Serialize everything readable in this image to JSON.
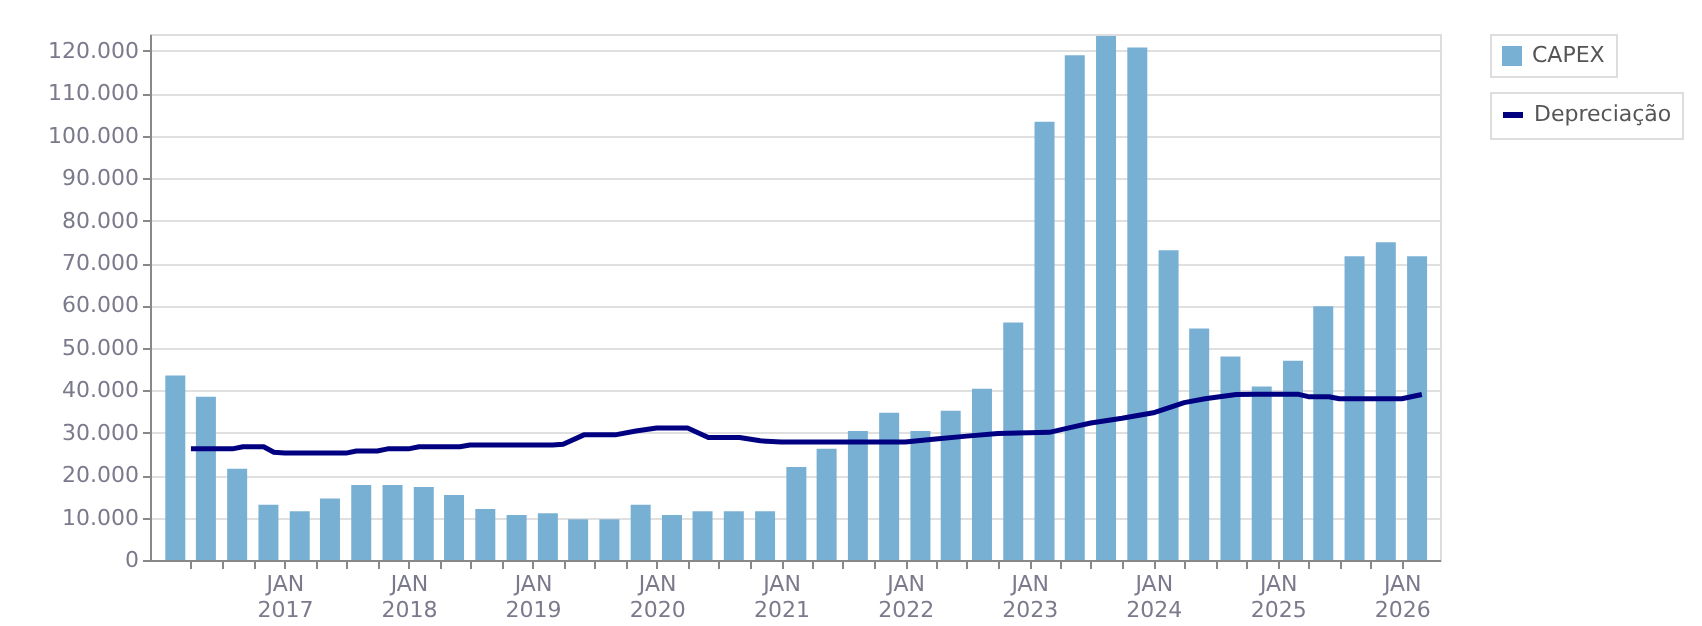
{
  "chart_data": {
    "type": "bar",
    "x": [
      "2016-02-15",
      "2016-05-15",
      "2016-08-15",
      "2016-11-15",
      "2017-02-15",
      "2017-05-15",
      "2017-08-15",
      "2017-11-15",
      "2018-02-15",
      "2018-05-15",
      "2018-08-15",
      "2018-11-15",
      "2019-02-15",
      "2019-05-15",
      "2019-08-15",
      "2019-11-15",
      "2020-02-15",
      "2020-05-15",
      "2020-08-15",
      "2020-11-15",
      "2021-02-15",
      "2021-05-15",
      "2021-08-15",
      "2021-11-15",
      "2022-02-15",
      "2022-05-15",
      "2022-08-15",
      "2022-11-15",
      "2023-02-15",
      "2023-05-15",
      "2023-08-15",
      "2023-11-15",
      "2024-02-15",
      "2024-05-15",
      "2024-08-15",
      "2024-11-15",
      "2025-02-15",
      "2025-05-15",
      "2025-08-15",
      "2025-11-15",
      "2026-02-15"
    ],
    "series": [
      {
        "name": "CAPEX",
        "color": "#78b0d4",
        "values": [
          43500,
          38500,
          21500,
          13000,
          11500,
          14500,
          17700,
          17700,
          17200,
          15300,
          12000,
          10600,
          11000,
          9600,
          9600,
          13000,
          10600,
          11500,
          11500,
          11500,
          21900,
          26200,
          30400,
          34700,
          30400,
          35200,
          40400,
          56000,
          103300,
          119000,
          123500,
          120800,
          73000,
          54600,
          48000,
          40900,
          47000,
          59800,
          71600,
          74900,
          71600
        ]
      },
      {
        "name": "Depreciação",
        "type": "line",
        "color": "#000080",
        "x": [
          "2016-04",
          "2016-08",
          "2016-09",
          "2016-11",
          "2016-12",
          "2017-01",
          "2017-07",
          "2017-08",
          "2017-10",
          "2017-11",
          "2018-01",
          "2018-02",
          "2018-06",
          "2018-07",
          "2019-03",
          "2019-04",
          "2019-06",
          "2019-09",
          "2019-11",
          "2020-01",
          "2020-04",
          "2020-06",
          "2020-09",
          "2020-11",
          "2021-01",
          "2022-01",
          "2022-04",
          "2022-07",
          "2022-10",
          "2023-01",
          "2023-03",
          "2023-05",
          "2023-07",
          "2023-10",
          "2024-01",
          "2024-04",
          "2024-06",
          "2024-09",
          "2024-11",
          "2025-03",
          "2025-04",
          "2025-06",
          "2025-07",
          "2026-01",
          "2026-03"
        ],
        "values": [
          26200,
          26200,
          26700,
          26700,
          25400,
          25200,
          25200,
          25700,
          25700,
          26200,
          26200,
          26700,
          26700,
          27100,
          27100,
          27300,
          29500,
          29500,
          30400,
          31100,
          31100,
          28900,
          28900,
          28100,
          27800,
          27800,
          28500,
          29200,
          29800,
          30000,
          30100,
          31200,
          32300,
          33400,
          34700,
          37100,
          38000,
          39000,
          39100,
          39100,
          38500,
          38500,
          38000,
          38000,
          39000
        ]
      }
    ],
    "xlim": [
      "2016-01-01",
      "2026-03-25"
    ],
    "xticks": [
      {
        "value": "2016-04-01",
        "label": null
      },
      {
        "value": "2016-07-01",
        "label": null
      },
      {
        "value": "2016-10-01",
        "label": null
      },
      {
        "value": "2017-01-01",
        "label": "JAN\n2017"
      },
      {
        "value": "2017-04-01",
        "label": null
      },
      {
        "value": "2017-07-01",
        "label": null
      },
      {
        "value": "2017-10-01",
        "label": null
      },
      {
        "value": "2018-01-01",
        "label": "JAN\n2018"
      },
      {
        "value": "2018-04-01",
        "label": null
      },
      {
        "value": "2018-07-01",
        "label": null
      },
      {
        "value": "2018-10-01",
        "label": null
      },
      {
        "value": "2019-01-01",
        "label": "JAN\n2019"
      },
      {
        "value": "2019-04-01",
        "label": null
      },
      {
        "value": "2019-07-01",
        "label": null
      },
      {
        "value": "2019-10-01",
        "label": null
      },
      {
        "value": "2020-01-01",
        "label": "JAN\n2020"
      },
      {
        "value": "2020-04-01",
        "label": null
      },
      {
        "value": "2020-07-01",
        "label": null
      },
      {
        "value": "2020-10-01",
        "label": null
      },
      {
        "value": "2021-01-01",
        "label": "JAN\n2021"
      },
      {
        "value": "2021-04-01",
        "label": null
      },
      {
        "value": "2021-07-01",
        "label": null
      },
      {
        "value": "2021-10-01",
        "label": null
      },
      {
        "value": "2022-01-01",
        "label": "JAN\n2022"
      },
      {
        "value": "2022-04-01",
        "label": null
      },
      {
        "value": "2022-07-01",
        "label": null
      },
      {
        "value": "2022-10-01",
        "label": null
      },
      {
        "value": "2023-01-01",
        "label": "JAN\n2023"
      },
      {
        "value": "2023-04-01",
        "label": null
      },
      {
        "value": "2023-07-01",
        "label": null
      },
      {
        "value": "2023-10-01",
        "label": null
      },
      {
        "value": "2024-01-01",
        "label": "JAN\n2024"
      },
      {
        "value": "2024-04-01",
        "label": null
      },
      {
        "value": "2024-07-01",
        "label": null
      },
      {
        "value": "2024-10-01",
        "label": null
      },
      {
        "value": "2025-01-01",
        "label": "JAN\n2025"
      },
      {
        "value": "2025-04-01",
        "label": null
      },
      {
        "value": "2025-07-01",
        "label": null
      },
      {
        "value": "2025-10-01",
        "label": null
      },
      {
        "value": "2026-01-01",
        "label": "JAN\n2026"
      }
    ],
    "ylim": [
      0,
      124000
    ],
    "yticks": [
      0,
      {
        "value": 10000,
        "label": "10.000"
      },
      {
        "value": 20000,
        "label": "20.000"
      },
      {
        "value": 30000,
        "label": "30.000"
      },
      {
        "value": 40000,
        "label": "40.000"
      },
      {
        "value": 50000,
        "label": "50.000"
      },
      {
        "value": 60000,
        "label": "60.000"
      },
      {
        "value": 70000,
        "label": "70.000"
      },
      {
        "value": 80000,
        "label": "80.000"
      },
      {
        "value": 90000,
        "label": "90.000"
      },
      {
        "value": 100000,
        "label": "100.000"
      },
      {
        "value": 110000,
        "label": "110.000"
      },
      {
        "value": 120000,
        "label": "120.000"
      }
    ],
    "grid": true,
    "legend": "top right"
  }
}
